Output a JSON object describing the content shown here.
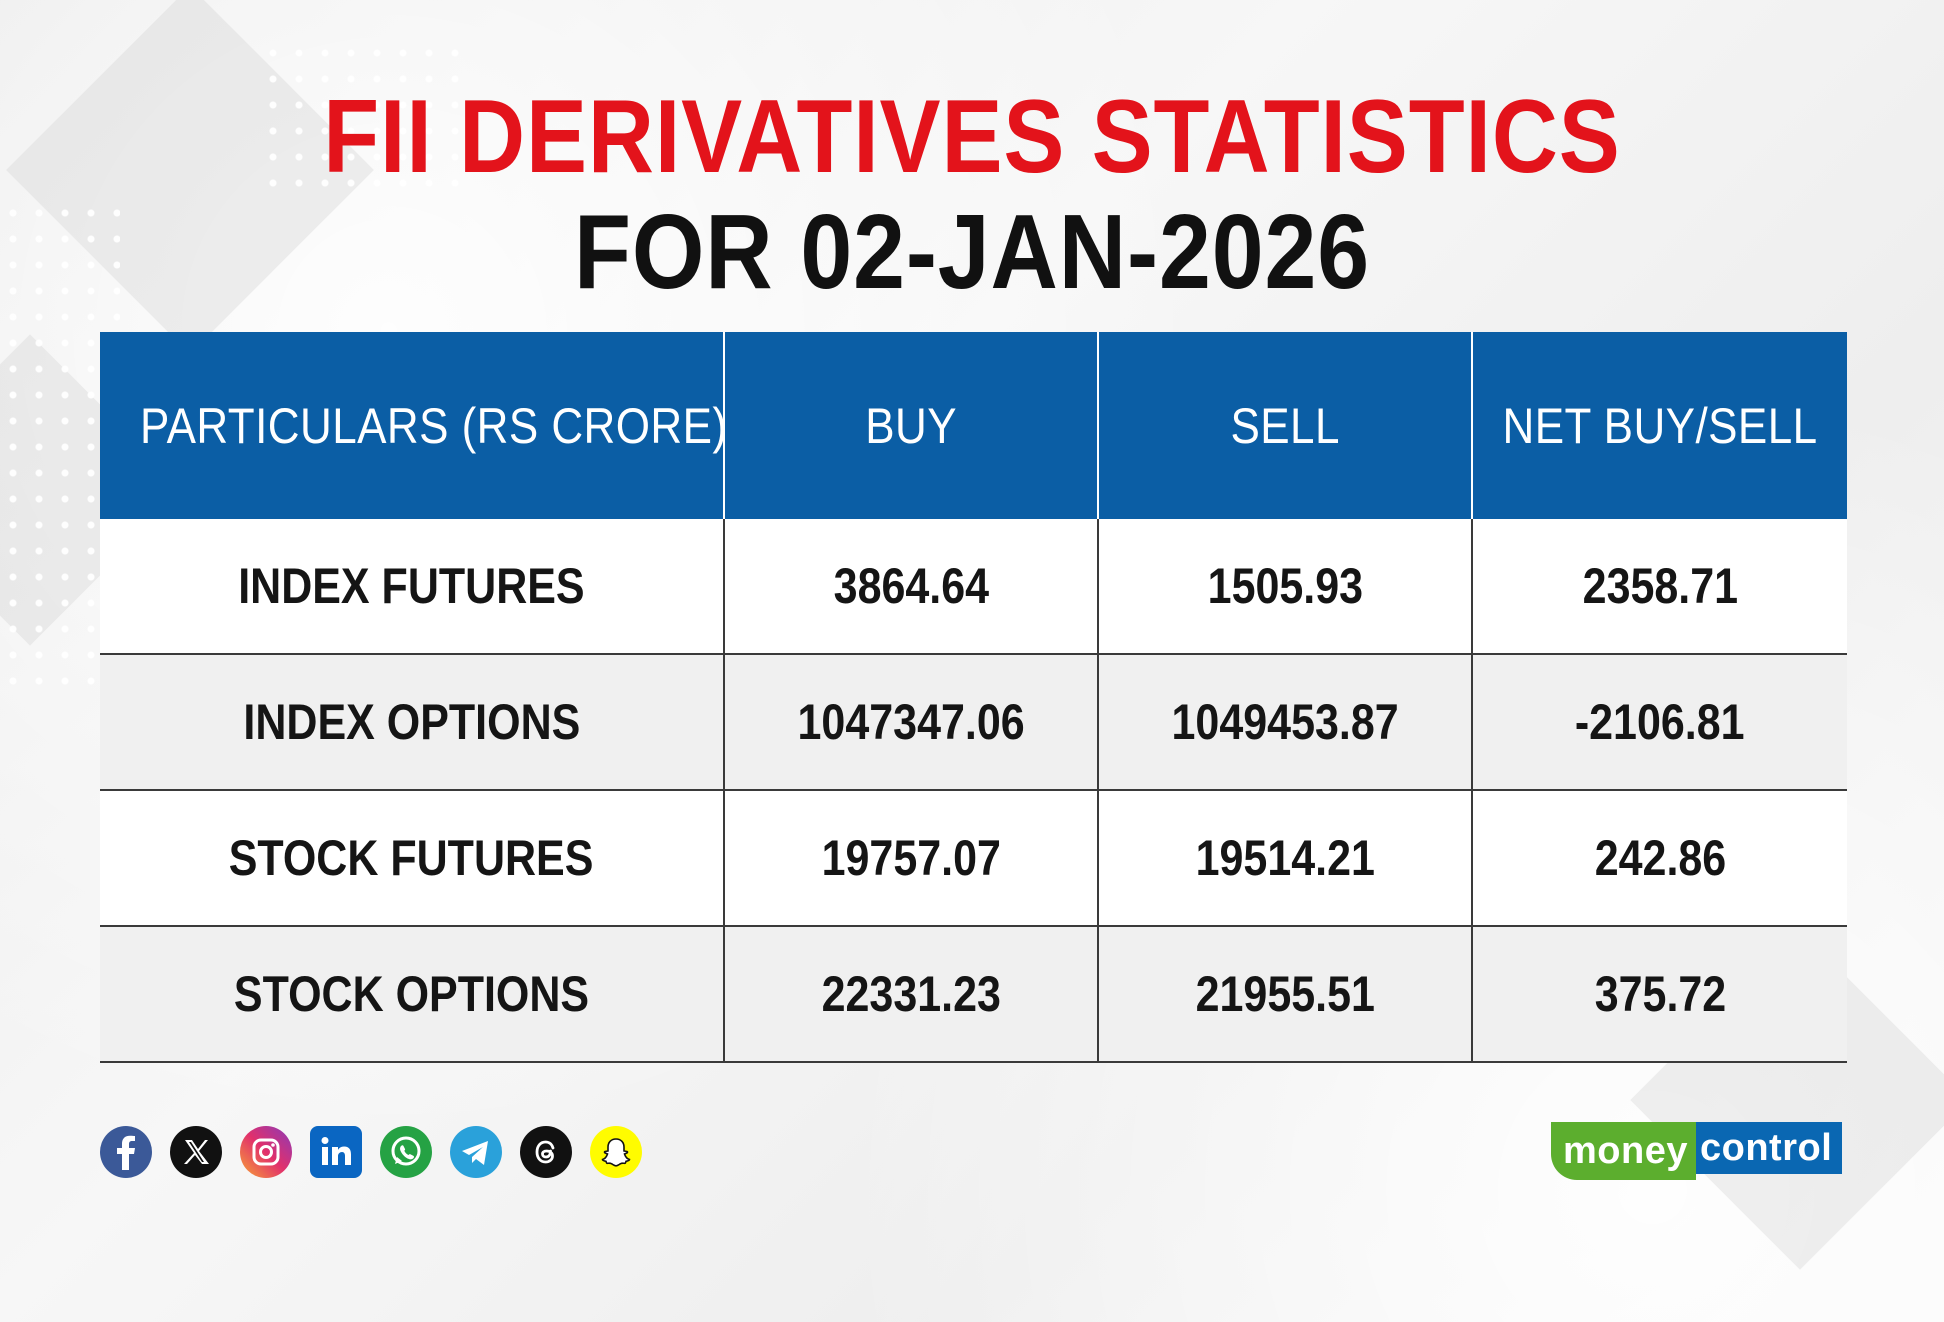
{
  "title": {
    "line1": "FII DERIVATIVES STATISTICS",
    "line2": "FOR 02-JAN-2026"
  },
  "table": {
    "headers": [
      "PARTICULARS (RS CRORE)",
      "BUY",
      "SELL",
      "NET BUY/SELL"
    ],
    "rows": [
      [
        "INDEX FUTURES",
        "3864.64",
        "1505.93",
        "2358.71"
      ],
      [
        "INDEX OPTIONS",
        "1047347.06",
        "1049453.87",
        "-2106.81"
      ],
      [
        "STOCK FUTURES",
        "19757.07",
        "19514.21",
        "242.86"
      ],
      [
        "STOCK OPTIONS",
        "22331.23",
        "21955.51",
        "375.72"
      ]
    ]
  },
  "social_icons": [
    "facebook-icon",
    "x-icon",
    "instagram-icon",
    "linkedin-icon",
    "whatsapp-icon",
    "telegram-icon",
    "threads-icon",
    "snapchat-icon"
  ],
  "logo": {
    "part1": "money",
    "part2": "control"
  },
  "colors": {
    "title_red": "#e3131b",
    "header_blue": "#0b5ea5",
    "logo_green": "#5cae2e",
    "logo_blue": "#0a67b2"
  }
}
